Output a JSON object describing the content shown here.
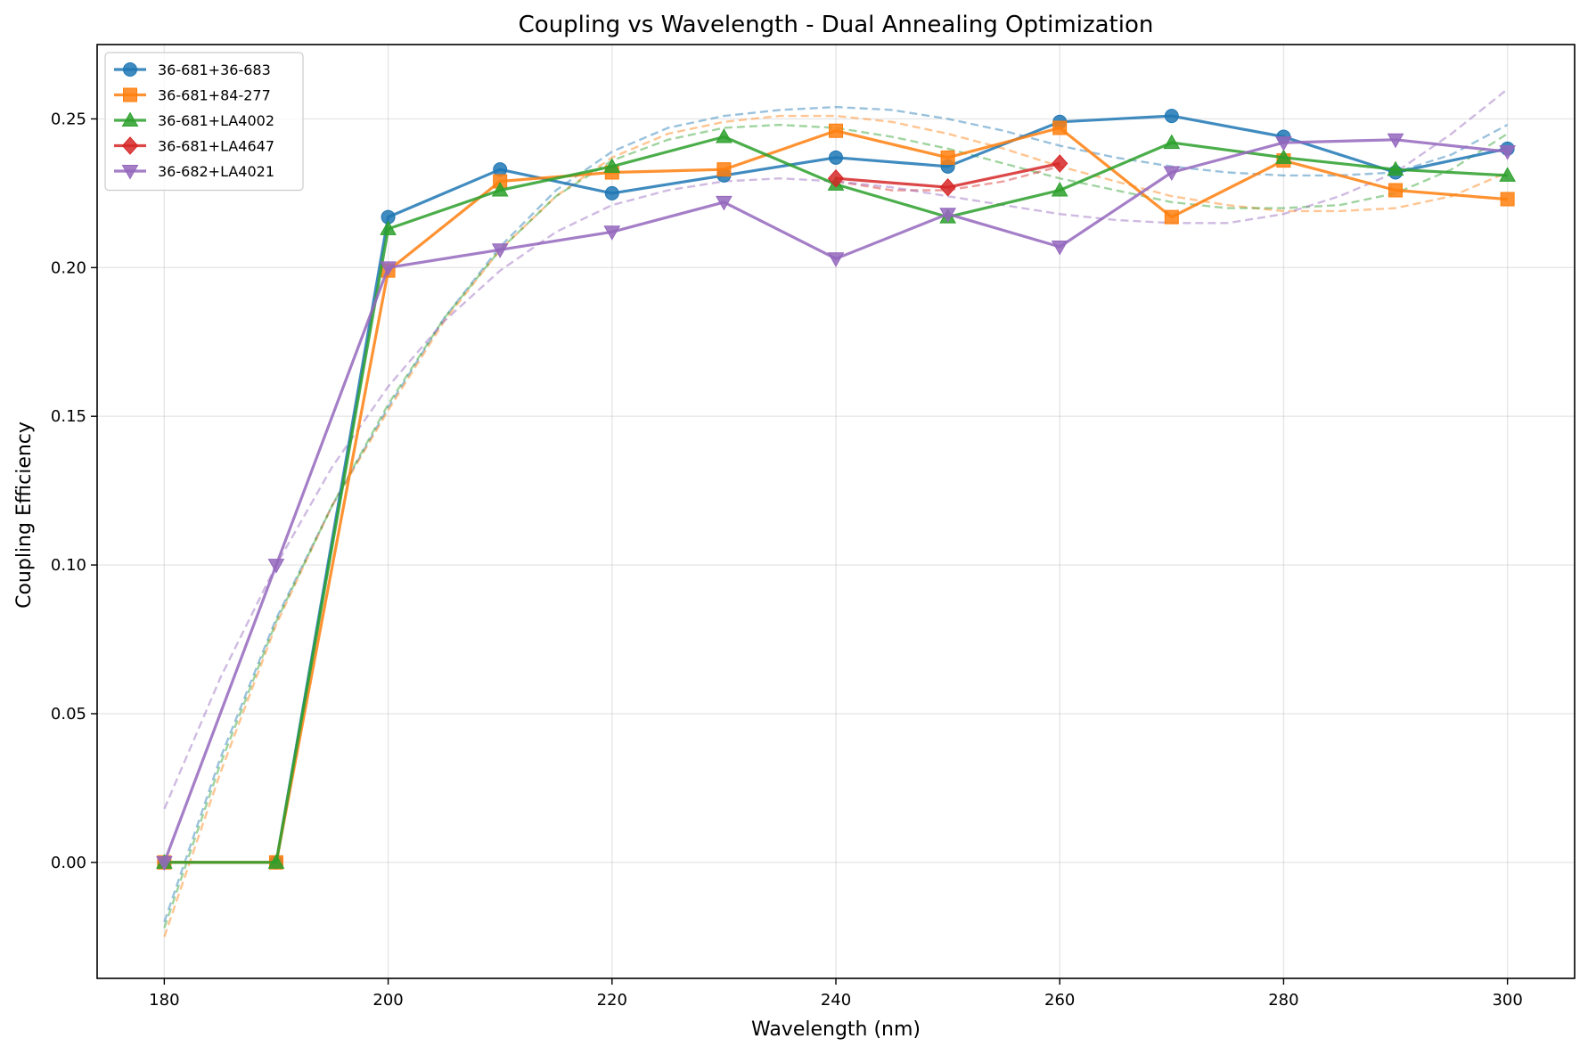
{
  "chart_data": {
    "type": "line",
    "title": "Coupling vs Wavelength - Dual Annealing Optimization",
    "xlabel": "Wavelength (nm)",
    "ylabel": "Coupling Efficiency",
    "xlim": [
      174,
      306
    ],
    "ylim": [
      -0.039,
      0.275
    ],
    "xticks": [
      180,
      200,
      220,
      240,
      260,
      280,
      300
    ],
    "xtick_labels": [
      "180",
      "200",
      "220",
      "240",
      "260",
      "280",
      "300"
    ],
    "yticks": [
      0.0,
      0.05,
      0.1,
      0.15,
      0.2,
      0.25
    ],
    "ytick_labels": [
      "0.00",
      "0.05",
      "0.10",
      "0.15",
      "0.20",
      "0.25"
    ],
    "grid": true,
    "legend_position": "top-left",
    "series": [
      {
        "name": "36-681+36-683",
        "color": "#1f77b4",
        "marker": "circle",
        "x": [
          180,
          190,
          200,
          210,
          220,
          230,
          240,
          250,
          260,
          270,
          280,
          290,
          300
        ],
        "y": [
          0.0,
          0.0,
          0.217,
          0.233,
          0.225,
          0.231,
          0.237,
          0.234,
          0.249,
          0.251,
          0.244,
          0.232,
          0.24
        ],
        "fit": {
          "x": [
            180,
            185,
            190,
            195,
            200,
            205,
            210,
            215,
            220,
            225,
            230,
            235,
            240,
            245,
            250,
            255,
            260,
            265,
            270,
            275,
            280,
            285,
            290,
            295,
            300
          ],
          "y": [
            -0.02,
            0.035,
            0.082,
            0.12,
            0.153,
            0.183,
            0.207,
            0.226,
            0.239,
            0.247,
            0.251,
            0.253,
            0.254,
            0.253,
            0.25,
            0.246,
            0.241,
            0.237,
            0.234,
            0.232,
            0.231,
            0.231,
            0.232,
            0.238,
            0.248
          ]
        }
      },
      {
        "name": "36-681+84-277",
        "color": "#ff7f0e",
        "marker": "square",
        "x": [
          180,
          190,
          200,
          210,
          220,
          230,
          240,
          250,
          260,
          270,
          280,
          290,
          300
        ],
        "y": [
          0.0,
          0.0,
          0.199,
          0.229,
          0.232,
          0.233,
          0.246,
          0.237,
          0.247,
          0.217,
          0.236,
          0.226,
          0.223
        ],
        "fit": {
          "x": [
            180,
            185,
            190,
            195,
            200,
            205,
            210,
            215,
            220,
            225,
            230,
            235,
            240,
            245,
            250,
            255,
            260,
            265,
            270,
            275,
            280,
            285,
            290,
            295,
            300
          ],
          "y": [
            -0.025,
            0.03,
            0.08,
            0.12,
            0.152,
            0.182,
            0.206,
            0.224,
            0.237,
            0.245,
            0.249,
            0.251,
            0.251,
            0.249,
            0.245,
            0.24,
            0.234,
            0.229,
            0.224,
            0.221,
            0.219,
            0.219,
            0.22,
            0.224,
            0.232
          ]
        }
      },
      {
        "name": "36-681+LA4002",
        "color": "#2ca02c",
        "marker": "triangle-up",
        "x": [
          180,
          190,
          200,
          210,
          220,
          230,
          240,
          250,
          260,
          270,
          280,
          290,
          300
        ],
        "y": [
          0.0,
          0.0,
          0.213,
          0.226,
          0.234,
          0.244,
          0.228,
          0.217,
          0.226,
          0.242,
          0.237,
          0.233,
          0.231
        ],
        "fit": {
          "x": [
            180,
            185,
            190,
            195,
            200,
            205,
            210,
            215,
            220,
            225,
            230,
            235,
            240,
            245,
            250,
            255,
            260,
            265,
            270,
            275,
            280,
            285,
            290,
            295,
            300
          ],
          "y": [
            -0.022,
            0.033,
            0.081,
            0.12,
            0.154,
            0.183,
            0.206,
            0.224,
            0.236,
            0.243,
            0.247,
            0.248,
            0.247,
            0.244,
            0.24,
            0.235,
            0.23,
            0.226,
            0.222,
            0.22,
            0.22,
            0.221,
            0.225,
            0.233,
            0.245
          ]
        }
      },
      {
        "name": "36-681+LA4647",
        "color": "#d62728",
        "marker": "diamond",
        "x": [
          240,
          250,
          260
        ],
        "y": [
          0.23,
          0.227,
          0.235
        ],
        "fit": {
          "x": [
            240,
            245,
            250,
            255,
            260
          ],
          "y": [
            0.229,
            0.226,
            0.226,
            0.229,
            0.234
          ]
        }
      },
      {
        "name": "36-682+LA4021",
        "color": "#9467bd",
        "marker": "triangle-down",
        "x": [
          180,
          190,
          200,
          210,
          220,
          230,
          240,
          250,
          260,
          270,
          280,
          290,
          300
        ],
        "y": [
          0.0,
          0.1,
          0.2,
          0.206,
          0.212,
          0.222,
          0.203,
          0.218,
          0.207,
          0.232,
          0.242,
          0.243,
          0.239
        ],
        "fit": {
          "x": [
            180,
            185,
            190,
            195,
            200,
            205,
            210,
            215,
            220,
            225,
            230,
            235,
            240,
            245,
            250,
            255,
            260,
            265,
            270,
            275,
            280,
            285,
            290,
            295,
            300
          ],
          "y": [
            0.018,
            0.062,
            0.1,
            0.133,
            0.16,
            0.182,
            0.199,
            0.212,
            0.221,
            0.226,
            0.229,
            0.23,
            0.229,
            0.227,
            0.224,
            0.221,
            0.218,
            0.216,
            0.215,
            0.215,
            0.218,
            0.224,
            0.232,
            0.245,
            0.26
          ]
        }
      }
    ]
  }
}
